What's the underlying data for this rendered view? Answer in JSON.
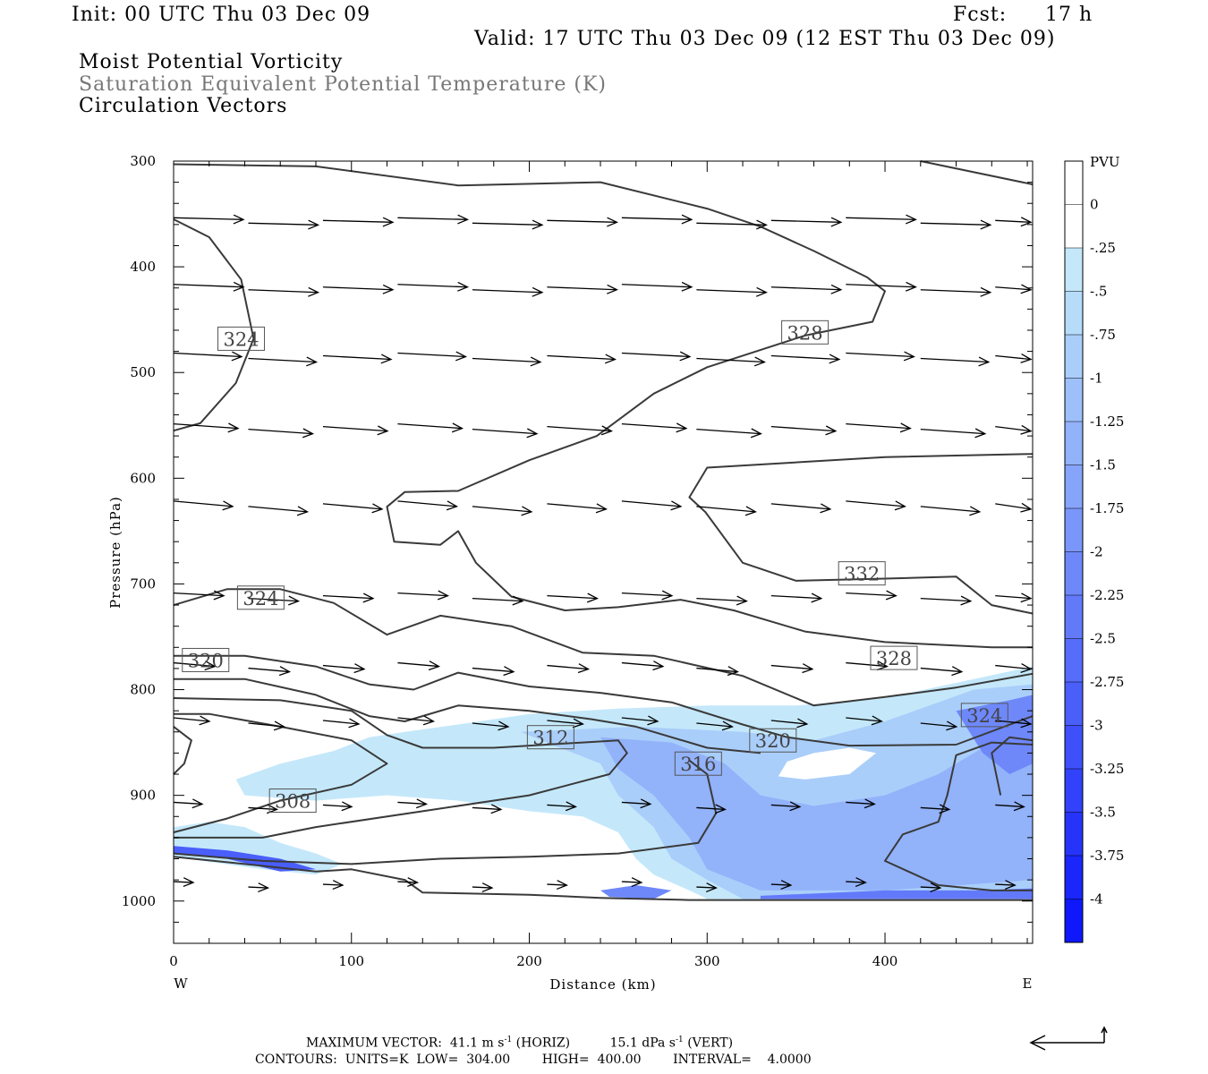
{
  "header": {
    "init": "Init: 00 UTC Thu 03 Dec 09",
    "fcst_label": "Fcst:",
    "fcst_value": "17 h",
    "valid": "Valid: 17 UTC Thu 03 Dec 09 (12 EST Thu 03 Dec 09)",
    "field1": "Moist Potential Vorticity",
    "field2": "Saturation Equivalent Potential Temperature (K)",
    "field3": "Circulation Vectors"
  },
  "footer": {
    "max_vector_label": "MAXIMUM VECTOR:",
    "horiz": "41.1 m s",
    "horiz_exp": "-1",
    "horiz_unit": "(HORIZ)",
    "vert": "15.1 dPa s",
    "vert_exp": "-1",
    "vert_unit": "(VERT)",
    "contours": "CONTOURS:  UNITS=K  LOW=  304.00        HIGH=  400.00        INTERVAL=    4.0000"
  },
  "colors": {
    "contour": "#3a3a3a",
    "arrow": "#000000",
    "pv_scale": [
      "#ffffff",
      "#ffffff",
      "#c4e8fa",
      "#b6dcfa",
      "#aacefa",
      "#9ec0fa",
      "#92b2fa",
      "#86a4fa",
      "#7a96fa",
      "#6e88fa",
      "#627afa",
      "#566cfa",
      "#4a5efa",
      "#3e50fa",
      "#3242fa",
      "#2634fa",
      "#1a26fa",
      "#0e18fa"
    ]
  },
  "chart_data": {
    "type": "heatmap",
    "xlabel": "Distance (km)",
    "ylabel": "Pressure (hPa)",
    "xlim": [
      0,
      483
    ],
    "ylim": [
      1040,
      300
    ],
    "x_ticks": [
      0,
      100,
      200,
      300,
      400
    ],
    "y_ticks": [
      300,
      400,
      500,
      600,
      700,
      800,
      900,
      1000
    ],
    "x_end_labels": {
      "left": "W",
      "right": "E"
    },
    "colorbar": {
      "unit": "PVU",
      "labels": [
        "0",
        "-.25",
        "-.5",
        "-.75",
        "-1",
        "-1.25",
        "-1.5",
        "-1.75",
        "-2",
        "-2.25",
        "-2.5",
        "-2.75",
        "-3",
        "-3.25",
        "-3.5",
        "-3.75",
        "-4"
      ]
    },
    "contour_labels": [
      {
        "text": "324",
        "x": 38,
        "p": 468
      },
      {
        "text": "328",
        "x": 355,
        "p": 462
      },
      {
        "text": "332",
        "x": 387,
        "p": 690
      },
      {
        "text": "324",
        "x": 49,
        "p": 713
      },
      {
        "text": "328",
        "x": 405,
        "p": 770
      },
      {
        "text": "320",
        "x": 18,
        "p": 772
      },
      {
        "text": "312",
        "x": 212,
        "p": 845
      },
      {
        "text": "320",
        "x": 337,
        "p": 848
      },
      {
        "text": "316",
        "x": 295,
        "p": 870
      },
      {
        "text": "324",
        "x": 456,
        "p": 824
      },
      {
        "text": "308",
        "x": 67,
        "p": 905
      }
    ],
    "contours": [
      [
        [
          0,
          303
        ],
        [
          80,
          305
        ],
        [
          160,
          323
        ],
        [
          240,
          320
        ],
        [
          300,
          345
        ],
        [
          330,
          362
        ],
        [
          360,
          385
        ],
        [
          390,
          410
        ],
        [
          400,
          423
        ],
        [
          393,
          452
        ],
        [
          355,
          465
        ],
        [
          300,
          495
        ],
        [
          270,
          520
        ],
        [
          238,
          560
        ],
        [
          200,
          583
        ],
        [
          160,
          612
        ],
        [
          130,
          613
        ],
        [
          120,
          627
        ],
        [
          124,
          660
        ],
        [
          150,
          663
        ],
        [
          160,
          650
        ],
        [
          170,
          680
        ],
        [
          190,
          712
        ],
        [
          220,
          725
        ],
        [
          250,
          722
        ],
        [
          285,
          715
        ],
        [
          315,
          725
        ],
        [
          355,
          745
        ],
        [
          400,
          755
        ],
        [
          460,
          760
        ],
        [
          483,
          760
        ]
      ],
      [
        [
          0,
          355
        ],
        [
          20,
          372
        ],
        [
          38,
          412
        ],
        [
          45,
          468
        ],
        [
          35,
          510
        ],
        [
          15,
          548
        ],
        [
          0,
          555
        ]
      ],
      [
        [
          420,
          300
        ],
        [
          483,
          322
        ]
      ],
      [
        [
          483,
          577
        ],
        [
          400,
          580
        ],
        [
          300,
          590
        ],
        [
          290,
          618
        ],
        [
          299,
          632
        ],
        [
          320,
          680
        ],
        [
          350,
          697
        ],
        [
          400,
          695
        ],
        [
          440,
          693
        ],
        [
          460,
          720
        ],
        [
          483,
          728
        ]
      ],
      [
        [
          0,
          720
        ],
        [
          30,
          705
        ],
        [
          60,
          705
        ],
        [
          90,
          718
        ],
        [
          120,
          748
        ],
        [
          150,
          730
        ],
        [
          190,
          740
        ],
        [
          230,
          765
        ],
        [
          270,
          768
        ],
        [
          320,
          787
        ],
        [
          360,
          815
        ],
        [
          400,
          807
        ],
        [
          440,
          798
        ],
        [
          483,
          785
        ]
      ],
      [
        [
          0,
          768
        ],
        [
          40,
          768
        ],
        [
          80,
          778
        ],
        [
          110,
          795
        ],
        [
          135,
          800
        ],
        [
          160,
          784
        ],
        [
          200,
          797
        ],
        [
          240,
          803
        ],
        [
          280,
          812
        ],
        [
          320,
          833
        ],
        [
          345,
          845
        ],
        [
          380,
          853
        ],
        [
          440,
          852
        ],
        [
          483,
          825
        ]
      ],
      [
        [
          0,
          790
        ],
        [
          40,
          790
        ],
        [
          80,
          805
        ],
        [
          110,
          825
        ],
        [
          130,
          830
        ],
        [
          160,
          815
        ],
        [
          200,
          820
        ],
        [
          235,
          828
        ],
        [
          260,
          835
        ],
        [
          300,
          855
        ],
        [
          330,
          860
        ]
      ],
      [
        [
          0,
          808
        ],
        [
          60,
          810
        ],
        [
          100,
          820
        ],
        [
          120,
          843
        ],
        [
          140,
          855
        ],
        [
          180,
          855
        ],
        [
          230,
          850
        ],
        [
          250,
          848
        ],
        [
          255,
          860
        ],
        [
          245,
          880
        ],
        [
          200,
          900
        ],
        [
          140,
          915
        ],
        [
          80,
          930
        ],
        [
          50,
          940
        ],
        [
          0,
          940
        ]
      ],
      [
        [
          0,
          823
        ],
        [
          20,
          823
        ],
        [
          60,
          835
        ],
        [
          100,
          848
        ],
        [
          120,
          870
        ],
        [
          100,
          890
        ],
        [
          60,
          905
        ],
        [
          30,
          922
        ],
        [
          0,
          935
        ]
      ],
      [
        [
          290,
          867
        ],
        [
          300,
          880
        ],
        [
          305,
          917
        ],
        [
          295,
          945
        ],
        [
          250,
          955
        ],
        [
          200,
          958
        ],
        [
          150,
          960
        ],
        [
          100,
          965
        ],
        [
          50,
          962
        ],
        [
          0,
          955
        ]
      ],
      [
        [
          0,
          835
        ],
        [
          10,
          848
        ],
        [
          6,
          870
        ],
        [
          0,
          880
        ]
      ],
      [
        [
          483,
          852
        ],
        [
          460,
          850
        ],
        [
          440,
          862
        ],
        [
          435,
          900
        ],
        [
          430,
          925
        ],
        [
          410,
          937
        ],
        [
          400,
          962
        ],
        [
          430,
          985
        ],
        [
          460,
          990
        ],
        [
          483,
          990
        ]
      ],
      [
        [
          483,
          848
        ],
        [
          470,
          845
        ],
        [
          460,
          860
        ],
        [
          465,
          900
        ]
      ],
      [
        [
          0,
          958
        ],
        [
          40,
          965
        ],
        [
          80,
          972
        ],
        [
          100,
          970
        ],
        [
          130,
          980
        ],
        [
          140,
          992
        ],
        [
          200,
          994
        ],
        [
          240,
          997
        ],
        [
          290,
          999
        ],
        [
          483,
          999
        ]
      ]
    ],
    "pv_patches": [
      {
        "level": 2,
        "pts": [
          [
            35,
            885
          ],
          [
            60,
            870
          ],
          [
            90,
            858
          ],
          [
            110,
            845
          ],
          [
            130,
            840
          ],
          [
            160,
            833
          ],
          [
            200,
            823
          ],
          [
            250,
            818
          ],
          [
            300,
            815
          ],
          [
            350,
            815
          ],
          [
            400,
            808
          ],
          [
            450,
            790
          ],
          [
            483,
            778
          ],
          [
            483,
            998
          ],
          [
            300,
            998
          ],
          [
            290,
            990
          ],
          [
            270,
            975
          ],
          [
            260,
            960
          ],
          [
            250,
            935
          ],
          [
            230,
            920
          ],
          [
            200,
            915
          ],
          [
            160,
            905
          ],
          [
            120,
            900
          ],
          [
            80,
            905
          ],
          [
            40,
            900
          ]
        ]
      },
      {
        "level": 2,
        "pts": [
          [
            0,
            930
          ],
          [
            20,
            925
          ],
          [
            40,
            930
          ],
          [
            60,
            945
          ],
          [
            80,
            955
          ],
          [
            95,
            965
          ],
          [
            80,
            975
          ],
          [
            50,
            970
          ],
          [
            0,
            958
          ]
        ]
      },
      {
        "level": 4,
        "pts": [
          [
            195,
            840
          ],
          [
            260,
            835
          ],
          [
            320,
            840
          ],
          [
            360,
            848
          ],
          [
            400,
            830
          ],
          [
            450,
            800
          ],
          [
            483,
            795
          ],
          [
            483,
            998
          ],
          [
            320,
            998
          ],
          [
            300,
            980
          ],
          [
            280,
            960
          ],
          [
            270,
            930
          ],
          [
            250,
            900
          ],
          [
            240,
            870
          ]
        ]
      },
      {
        "level": 6,
        "pts": [
          [
            240,
            845
          ],
          [
            280,
            850
          ],
          [
            310,
            870
          ],
          [
            330,
            900
          ],
          [
            360,
            910
          ],
          [
            400,
            900
          ],
          [
            430,
            880
          ],
          [
            460,
            850
          ],
          [
            483,
            830
          ],
          [
            483,
            980
          ],
          [
            400,
            990
          ],
          [
            330,
            990
          ],
          [
            300,
            970
          ],
          [
            290,
            940
          ],
          [
            270,
            900
          ],
          [
            250,
            875
          ]
        ]
      },
      {
        "level": 9,
        "pts": [
          [
            440,
            820
          ],
          [
            470,
            810
          ],
          [
            483,
            805
          ],
          [
            483,
            870
          ],
          [
            470,
            880
          ],
          [
            455,
            860
          ]
        ]
      },
      {
        "level": 9,
        "pts": [
          [
            240,
            990
          ],
          [
            260,
            985
          ],
          [
            280,
            990
          ],
          [
            270,
            998
          ],
          [
            245,
            996
          ]
        ]
      },
      {
        "level": 10,
        "pts": [
          [
            330,
            995
          ],
          [
            400,
            990
          ],
          [
            450,
            990
          ],
          [
            483,
            988
          ],
          [
            483,
            998
          ],
          [
            330,
            998
          ]
        ]
      },
      {
        "level": 12,
        "pts": [
          [
            0,
            948
          ],
          [
            30,
            952
          ],
          [
            60,
            960
          ],
          [
            80,
            970
          ],
          [
            60,
            972
          ],
          [
            30,
            960
          ],
          [
            0,
            955
          ]
        ]
      }
    ],
    "pv_holes": [
      [
        [
          345,
          868
        ],
        [
          360,
          860
        ],
        [
          380,
          855
        ],
        [
          395,
          860
        ],
        [
          380,
          880
        ],
        [
          355,
          885
        ],
        [
          340,
          882
        ]
      ]
    ]
  }
}
